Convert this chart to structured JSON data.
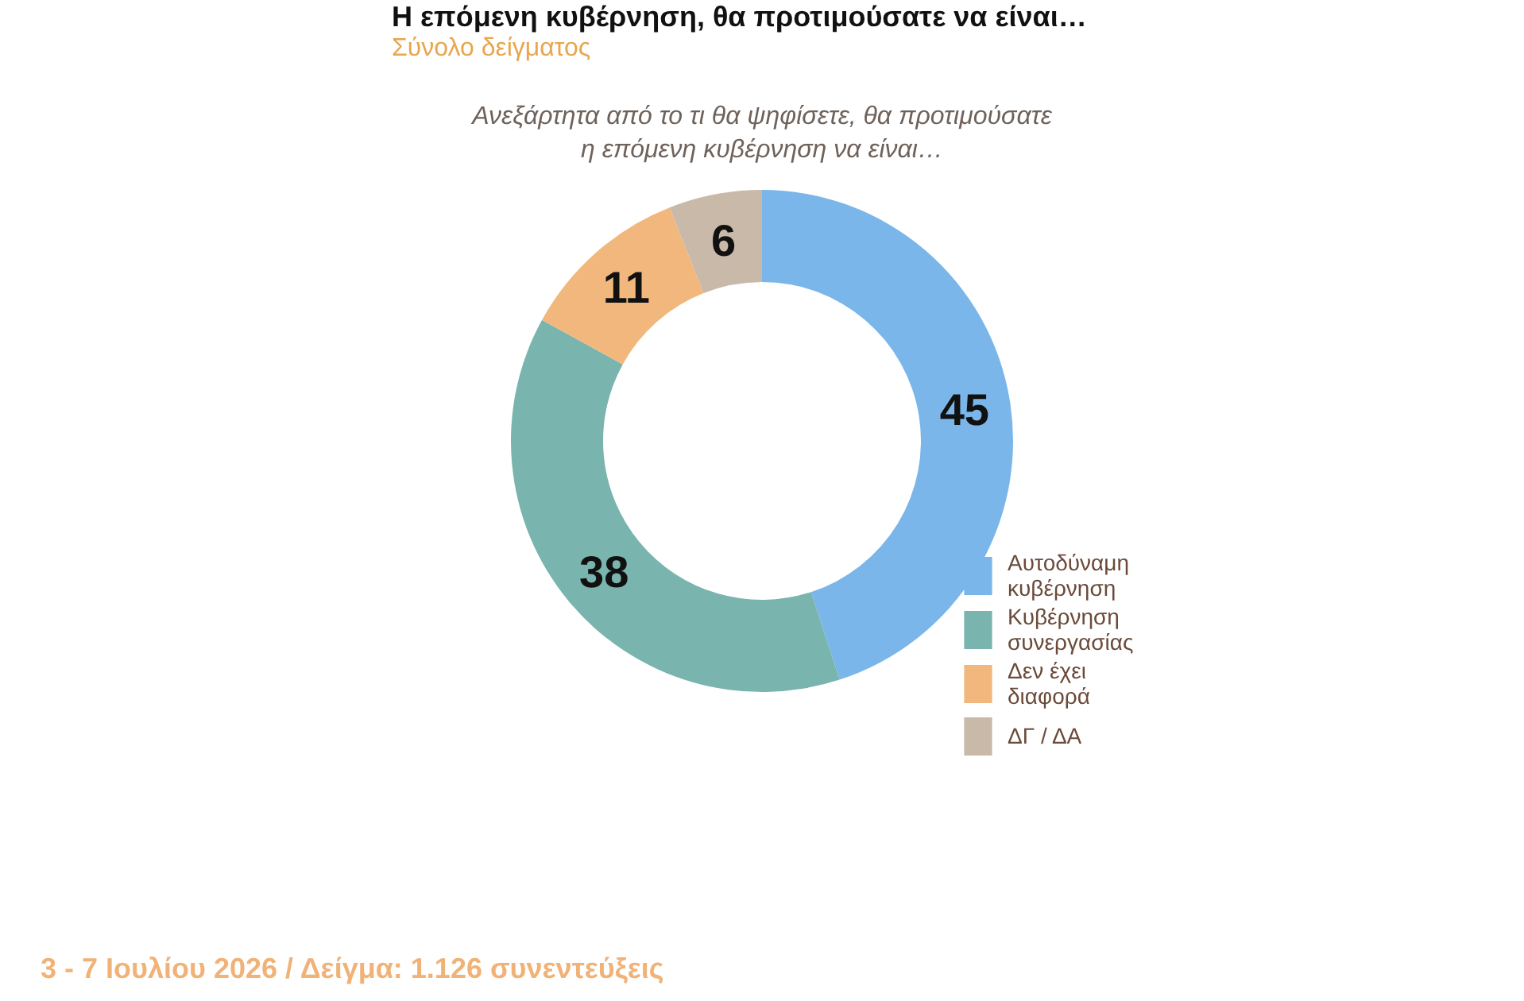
{
  "chart_data": {
    "type": "donut",
    "title": "Η επόμενη κυβέρνηση, θα προτιμούσατε να είναι…",
    "subtitle": "Σύνολο δείγματος",
    "annotations": [
      "Ανεξάρτητα από το τι θα ψηφίσετε, θα προτιμούσατε η επόμενη κυβέρνηση να είναι…",
      "3 - 7 Ιουλίου 2026 / Δείγμα: 1.126 συνεντεύξεις"
    ],
    "categories": [
      "Αυτοδύναμη κυβέρνηση",
      "Κυβέρνηση συνεργασίας",
      "Δεν έχει διαφορά",
      "ΔΓ / ΔΑ"
    ],
    "values": [
      45,
      38,
      11,
      6
    ],
    "colors": [
      "#7ab6ea",
      "#79b4ae",
      "#f2b77c",
      "#c8b9a9"
    ],
    "data_labels": true,
    "legend": "bottom right"
  }
}
